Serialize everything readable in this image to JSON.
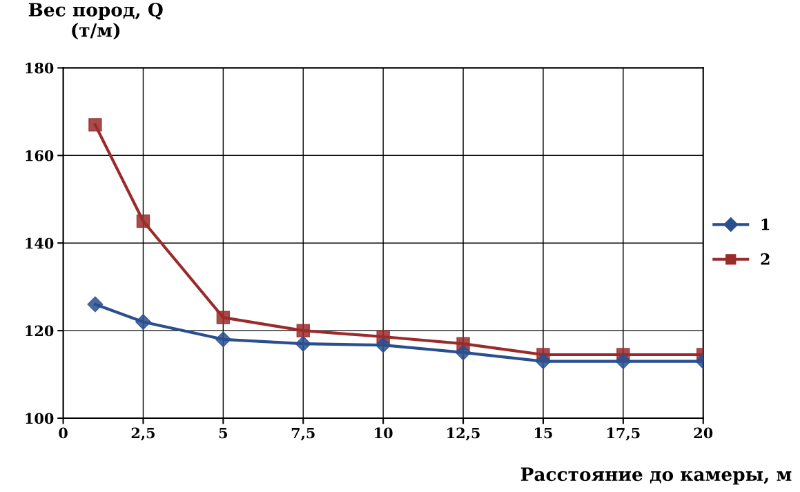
{
  "chart_data": {
    "type": "line",
    "ylabel": "Вес пород, Q\n(т/м)",
    "xlabel": "Расстояние до камеры, м",
    "x": [
      1,
      2.5,
      5,
      7.5,
      10,
      12.5,
      15,
      17.5,
      20
    ],
    "series": [
      {
        "name": "1",
        "color": "#2a4f8f",
        "marker": "diamond",
        "values": [
          126,
          122,
          118,
          117,
          116.7,
          115,
          113,
          113,
          113
        ]
      },
      {
        "name": "2",
        "color": "#9b2b2b",
        "marker": "square",
        "values": [
          167,
          145,
          123,
          120,
          118.6,
          117,
          114.5,
          114.5,
          114.5
        ]
      }
    ],
    "xlim": [
      0,
      20
    ],
    "xticks": [
      0,
      {
        "value": 2.5,
        "label": "2,5"
      },
      5,
      {
        "value": 7.5,
        "label": "7,5"
      },
      10,
      {
        "value": 12.5,
        "label": "12,5"
      },
      15,
      {
        "value": 17.5,
        "label": "17,5"
      },
      20
    ],
    "ylim": [
      100,
      180
    ],
    "yticks": [
      100,
      120,
      140,
      160,
      180
    ],
    "grid": true,
    "legend": "right",
    "line_style": "solid"
  }
}
